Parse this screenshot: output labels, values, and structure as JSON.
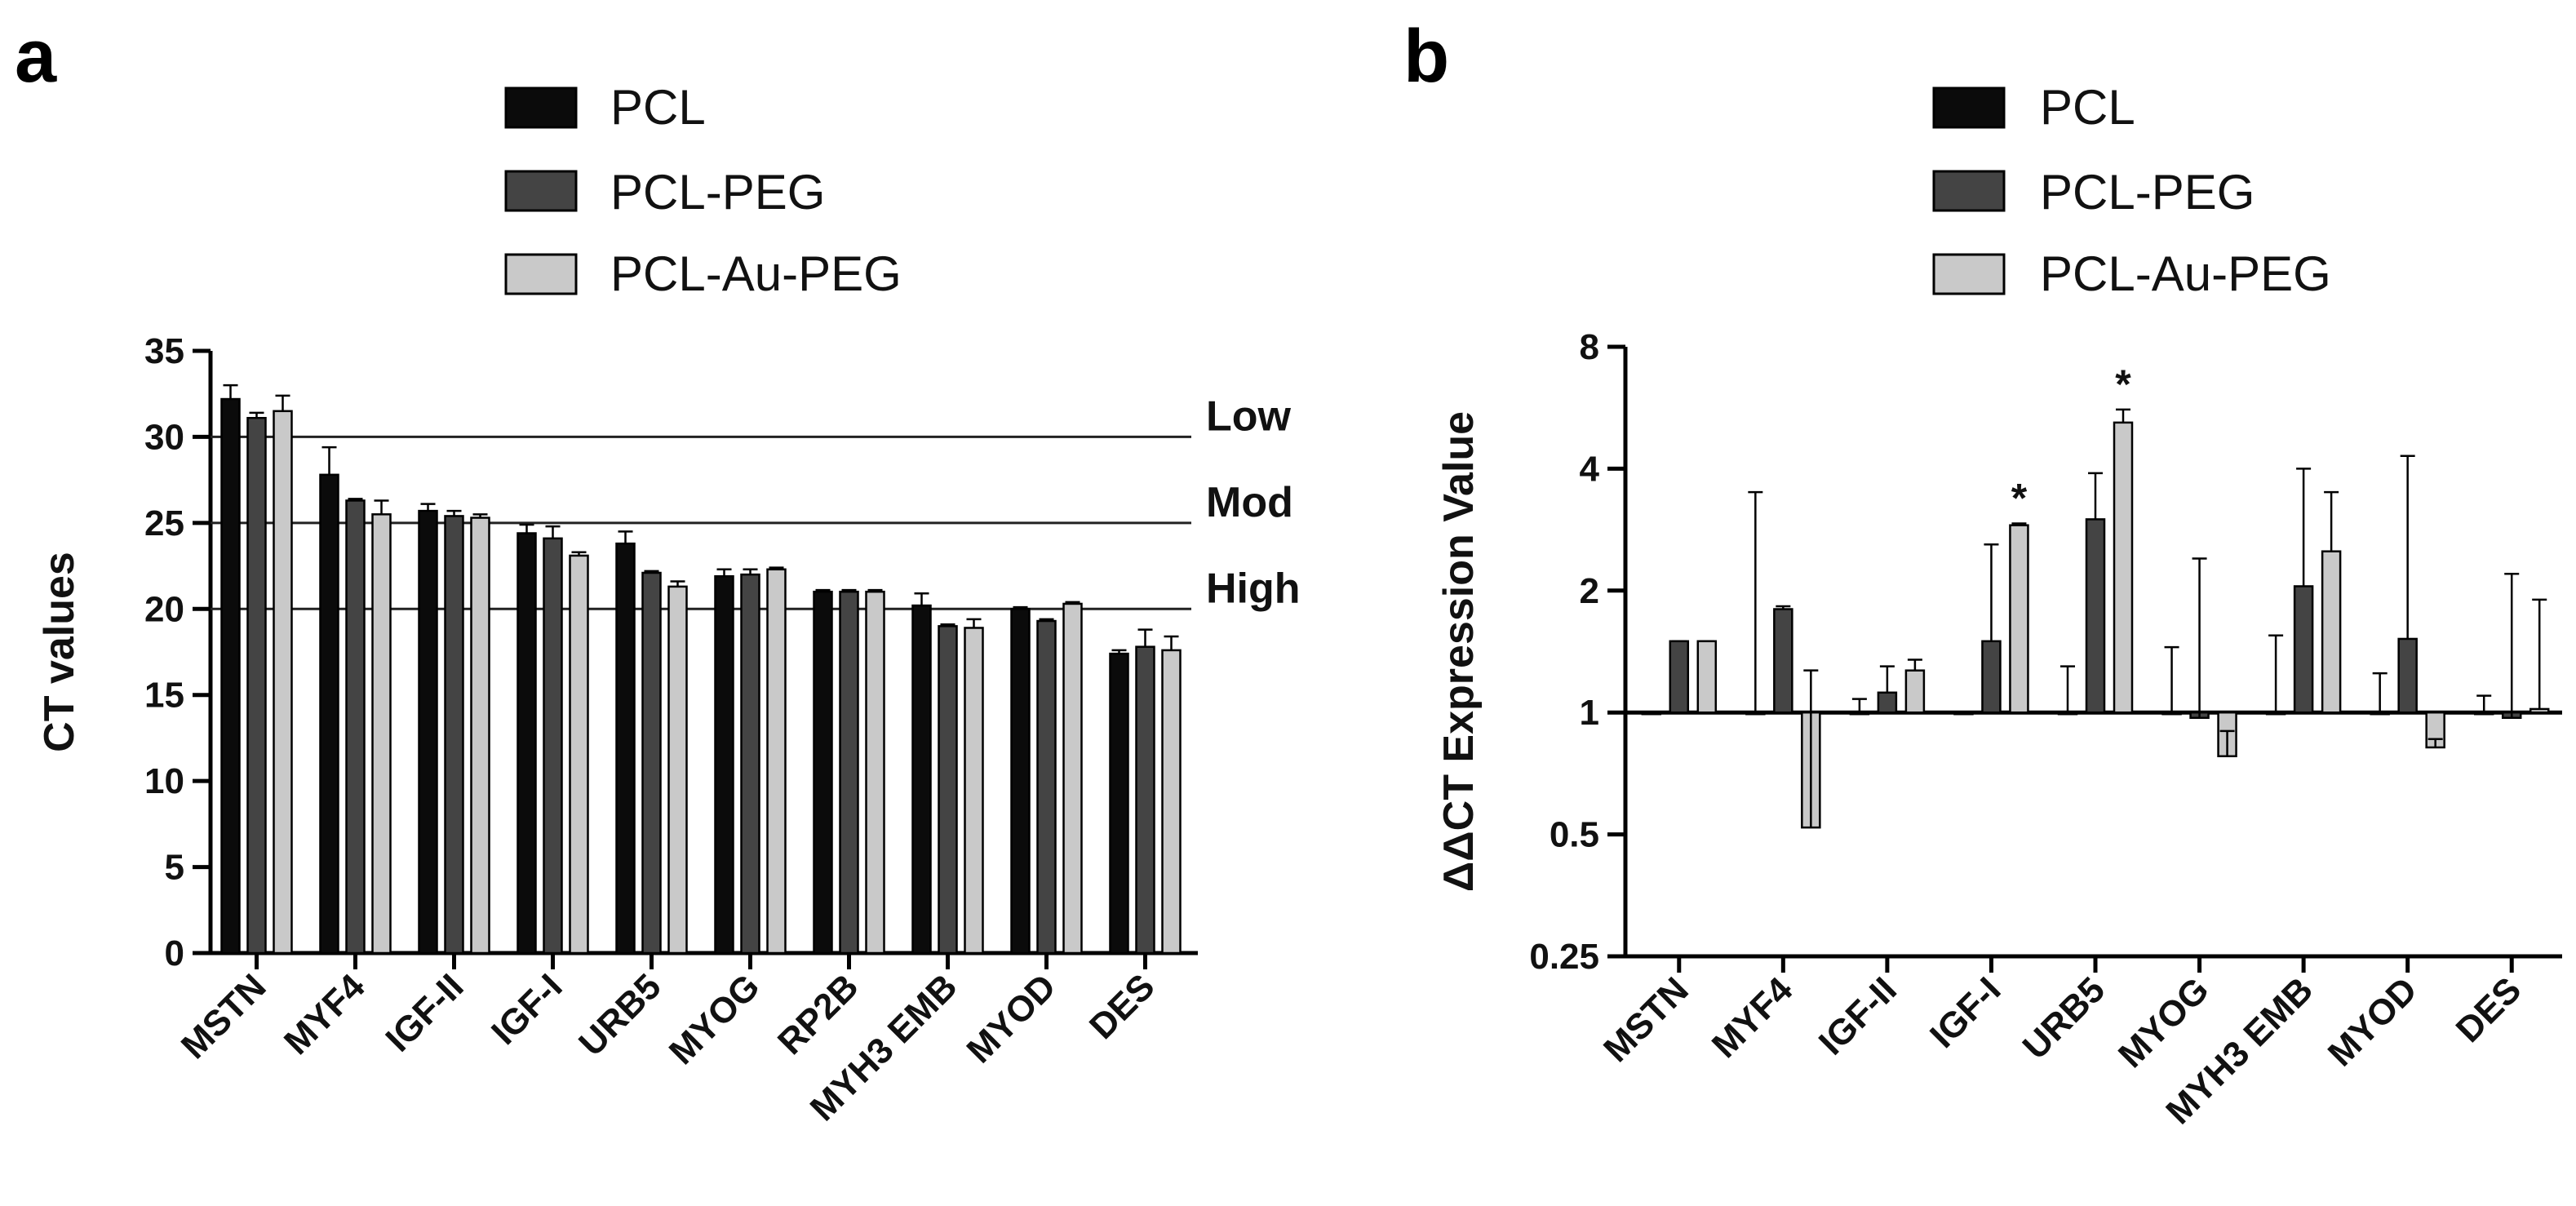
{
  "figure": {
    "panel_a_letter": "a",
    "panel_b_letter": "b"
  },
  "legend": {
    "series": [
      "PCL",
      "PCL-PEG",
      "PCL-Au-PEG"
    ]
  },
  "colors": {
    "PCL": "#0b0b0b",
    "PCL-PEG": "#444444",
    "PCL-Au-PEG": "#c9c9c9"
  },
  "chart_data": [
    {
      "type": "bar",
      "panel": "a",
      "title": "",
      "xlabel": "",
      "ylabel": "CT values",
      "ylim": [
        0,
        35
      ],
      "yticks": [
        "0",
        "5",
        "10",
        "15",
        "20",
        "25",
        "30",
        "35"
      ],
      "categories": [
        "MSTN",
        "MYF4",
        "IGF-II",
        "IGF-I",
        "URB5",
        "MYOG",
        "RP2B",
        "MYH3 EMB",
        "MYOD",
        "DES"
      ],
      "series": [
        {
          "name": "PCL",
          "values": [
            32.2,
            27.8,
            25.7,
            24.4,
            23.8,
            21.9,
            21.0,
            20.2,
            20.0,
            17.4
          ],
          "errors": [
            0.8,
            1.6,
            0.4,
            0.5,
            0.7,
            0.4,
            0.1,
            0.7,
            0.1,
            0.2
          ]
        },
        {
          "name": "PCL-PEG",
          "values": [
            31.1,
            26.3,
            25.4,
            24.1,
            22.1,
            22.0,
            21.0,
            19.0,
            19.3,
            17.8
          ],
          "errors": [
            0.3,
            0.1,
            0.3,
            0.7,
            0.1,
            0.3,
            0.1,
            0.1,
            0.1,
            1.0
          ]
        },
        {
          "name": "PCL-Au-PEG",
          "values": [
            31.5,
            25.5,
            25.3,
            23.1,
            21.3,
            22.3,
            21.0,
            18.9,
            20.3,
            17.6
          ],
          "errors": [
            0.9,
            0.8,
            0.2,
            0.2,
            0.3,
            0.1,
            0.1,
            0.5,
            0.1,
            0.8
          ]
        }
      ],
      "reference_lines": [
        {
          "value": 30,
          "label": "Low"
        },
        {
          "value": 25,
          "label": "Mod"
        },
        {
          "value": 20,
          "label": "High"
        }
      ]
    },
    {
      "type": "bar",
      "panel": "b",
      "title": "",
      "xlabel": "",
      "ylabel": "ΔΔCT Expression Value",
      "yscale": "log2",
      "ylim": [
        0.25,
        8
      ],
      "baseline": 1,
      "yticks": [
        0.25,
        0.5,
        1,
        2,
        4,
        8
      ],
      "ytick_labels": [
        "0.25",
        "0.5",
        "1",
        "2",
        "4",
        "8"
      ],
      "categories": [
        "MSTN",
        "MYF4",
        "IGF-II",
        "IGF-I",
        "URB5",
        "MYOG",
        "MYH3 EMB",
        "MYOD",
        "DES"
      ],
      "series": [
        {
          "name": "PCL",
          "values": [
            1,
            1,
            1,
            1,
            1,
            1,
            1,
            1,
            1
          ],
          "errors": [
            0,
            3.5,
            1.08,
            1,
            1.3,
            1.45,
            1.55,
            1.25,
            1.1
          ]
        },
        {
          "name": "PCL-PEG",
          "values": [
            1.5,
            1.8,
            1.12,
            1.5,
            3.0,
            0.97,
            2.05,
            1.52,
            0.97
          ],
          "errors": [
            1.5,
            1.83,
            1.3,
            2.6,
            3.9,
            2.4,
            4.0,
            4.3,
            2.2
          ]
        },
        {
          "name": "PCL-Au-PEG",
          "values": [
            1.5,
            0.52,
            1.27,
            2.9,
            5.2,
            0.78,
            2.5,
            0.82,
            1.02
          ],
          "errors": [
            1.5,
            1.27,
            1.35,
            2.93,
            5.6,
            0.9,
            3.5,
            0.86,
            1.9
          ]
        }
      ],
      "annotations": [
        {
          "category": "IGF-I",
          "series": "PCL-Au-PEG",
          "text": "*"
        },
        {
          "category": "URB5",
          "series": "PCL-Au-PEG",
          "text": "*"
        }
      ]
    }
  ]
}
